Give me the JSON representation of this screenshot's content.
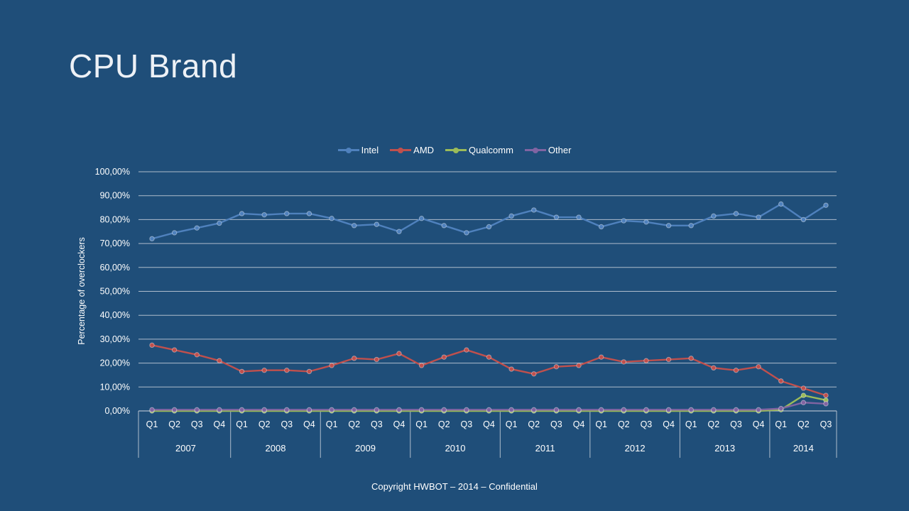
{
  "slide": {
    "title": "CPU Brand",
    "footer": "Copyright HWBOT – 2014 – Confidential",
    "background_color": "#1F4E79",
    "text_color": "#FFFFFF"
  },
  "chart_data": {
    "type": "line",
    "title": "",
    "xlabel": "",
    "ylabel": "Percentage of overclockers",
    "ylim": [
      0,
      100
    ],
    "ytick_step": 10,
    "ytick_format": "percent-comma-2dp",
    "grid": true,
    "legend_position": "top-center",
    "gridline_color": "#C8D0DA",
    "categories": [
      "Q1",
      "Q2",
      "Q3",
      "Q4",
      "Q1",
      "Q2",
      "Q3",
      "Q4",
      "Q1",
      "Q2",
      "Q3",
      "Q4",
      "Q1",
      "Q2",
      "Q3",
      "Q4",
      "Q1",
      "Q2",
      "Q3",
      "Q4",
      "Q1",
      "Q2",
      "Q3",
      "Q4",
      "Q1",
      "Q2",
      "Q3",
      "Q4",
      "Q1",
      "Q2",
      "Q3"
    ],
    "year_groups": [
      {
        "label": "2007",
        "count": 4
      },
      {
        "label": "2008",
        "count": 4
      },
      {
        "label": "2009",
        "count": 4
      },
      {
        "label": "2010",
        "count": 4
      },
      {
        "label": "2011",
        "count": 4
      },
      {
        "label": "2012",
        "count": 4
      },
      {
        "label": "2013",
        "count": 4
      },
      {
        "label": "2014",
        "count": 3
      }
    ],
    "series": [
      {
        "name": "Intel",
        "color": "#4F81BD",
        "values": [
          72.0,
          74.5,
          76.5,
          78.5,
          82.5,
          82.0,
          82.5,
          82.5,
          80.5,
          77.5,
          78.0,
          75.0,
          80.5,
          77.5,
          74.5,
          77.0,
          81.5,
          84.0,
          81.0,
          81.0,
          77.0,
          79.5,
          79.0,
          77.5,
          77.5,
          81.5,
          82.5,
          81.0,
          86.5,
          80.0,
          86.0
        ]
      },
      {
        "name": "AMD",
        "color": "#C0504D",
        "values": [
          27.5,
          25.5,
          23.5,
          21.0,
          16.5,
          17.0,
          17.0,
          16.5,
          19.0,
          22.0,
          21.5,
          24.0,
          19.0,
          22.5,
          25.5,
          22.5,
          17.5,
          15.5,
          18.5,
          19.0,
          22.5,
          20.5,
          21.0,
          21.5,
          22.0,
          18.0,
          17.0,
          18.5,
          12.5,
          9.5,
          6.5
        ]
      },
      {
        "name": "Qualcomm",
        "color": "#9BBB59",
        "values": [
          0,
          0,
          0,
          0,
          0,
          0,
          0,
          0,
          0,
          0,
          0,
          0,
          0,
          0,
          0,
          0,
          0,
          0,
          0,
          0,
          0,
          0,
          0,
          0,
          0,
          0,
          0,
          0,
          0.5,
          6.5,
          4.5
        ]
      },
      {
        "name": "Other",
        "color": "#8064A2",
        "values": [
          0.5,
          0.5,
          0.5,
          0.5,
          0.5,
          0.5,
          0.5,
          0.5,
          0.5,
          0.5,
          0.5,
          0.5,
          0.5,
          0.5,
          0.5,
          0.5,
          0.5,
          0.5,
          0.5,
          0.5,
          0.5,
          0.5,
          0.5,
          0.5,
          0.5,
          0.5,
          0.5,
          0.5,
          1.0,
          3.5,
          3.0
        ]
      }
    ]
  }
}
